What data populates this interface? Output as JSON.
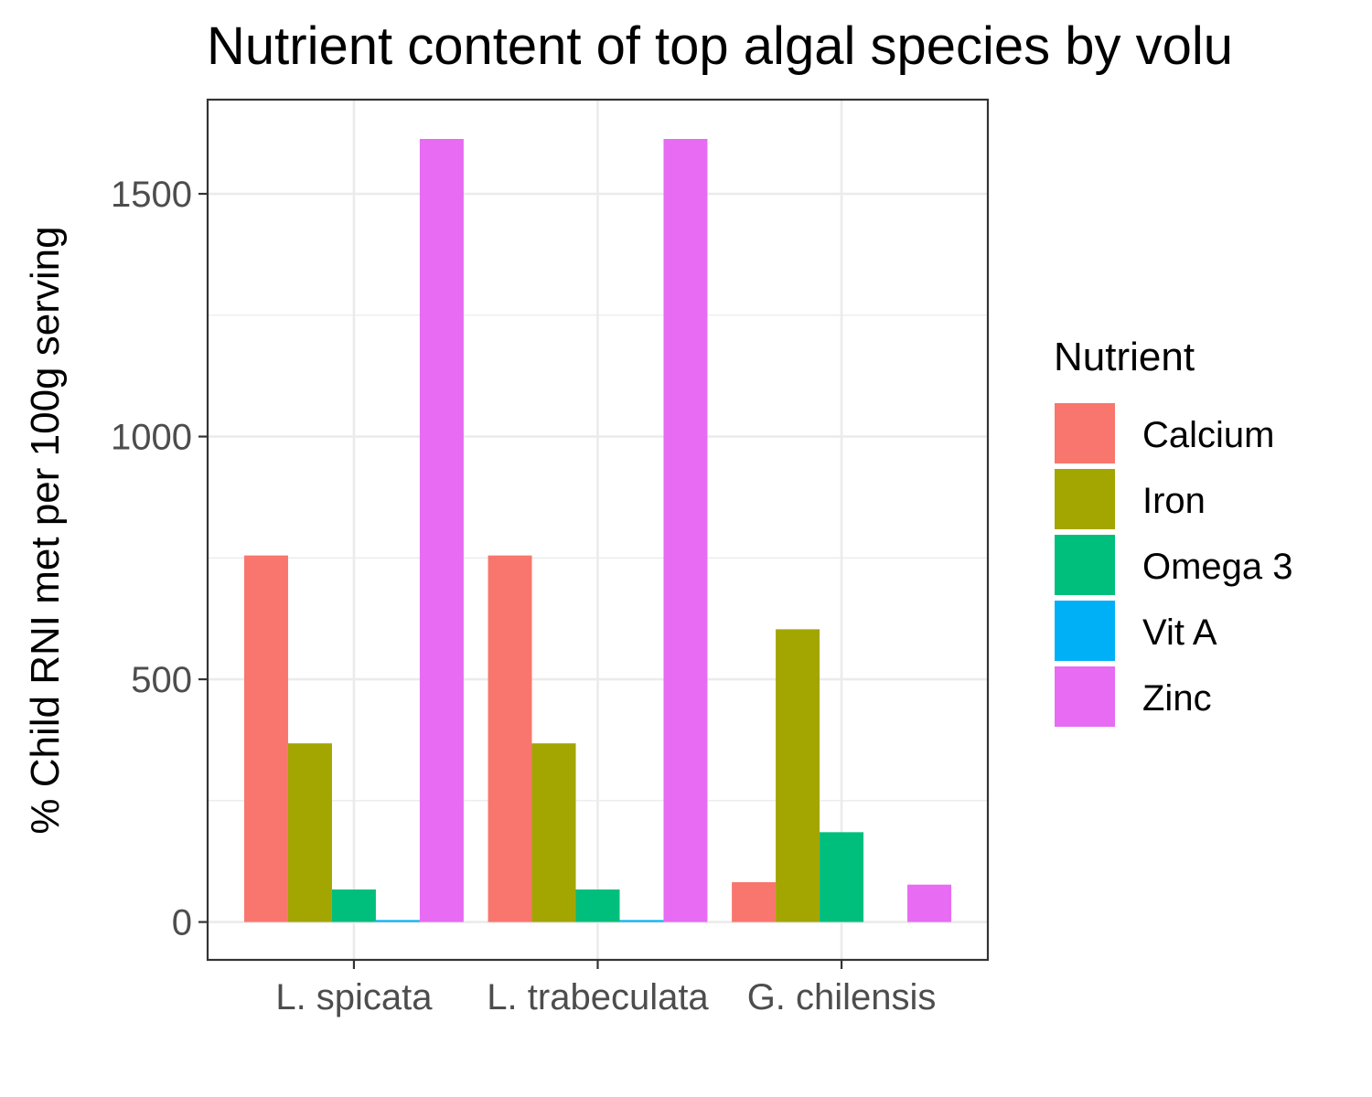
{
  "chart_data": {
    "type": "bar",
    "title": "Nutrient content of top algal species by volu",
    "xlabel": "",
    "ylabel": "% Child RNI met per 100g serving",
    "categories": [
      "L. spicata",
      "L. trabeculata",
      "G. chilensis"
    ],
    "series": [
      {
        "name": "Calcium",
        "color": "#F8766D",
        "values": [
          755,
          755,
          82
        ]
      },
      {
        "name": "Iron",
        "color": "#A3A500",
        "values": [
          368,
          368,
          603
        ]
      },
      {
        "name": "Omega 3",
        "color": "#00BF7D",
        "values": [
          67,
          67,
          185
        ]
      },
      {
        "name": "Vit A",
        "color": "#00B0F6",
        "values": [
          4,
          4,
          0
        ]
      },
      {
        "name": "Zinc",
        "color": "#E76BF3",
        "values": [
          1613,
          1613,
          77
        ]
      }
    ],
    "ylim": [
      -78,
      1694
    ],
    "yticks": [
      0,
      500,
      1000,
      1500
    ],
    "y_minor_ticks": [
      250,
      750,
      1250
    ],
    "grid": true,
    "legend": {
      "title": "Nutrient",
      "position": "right"
    }
  }
}
